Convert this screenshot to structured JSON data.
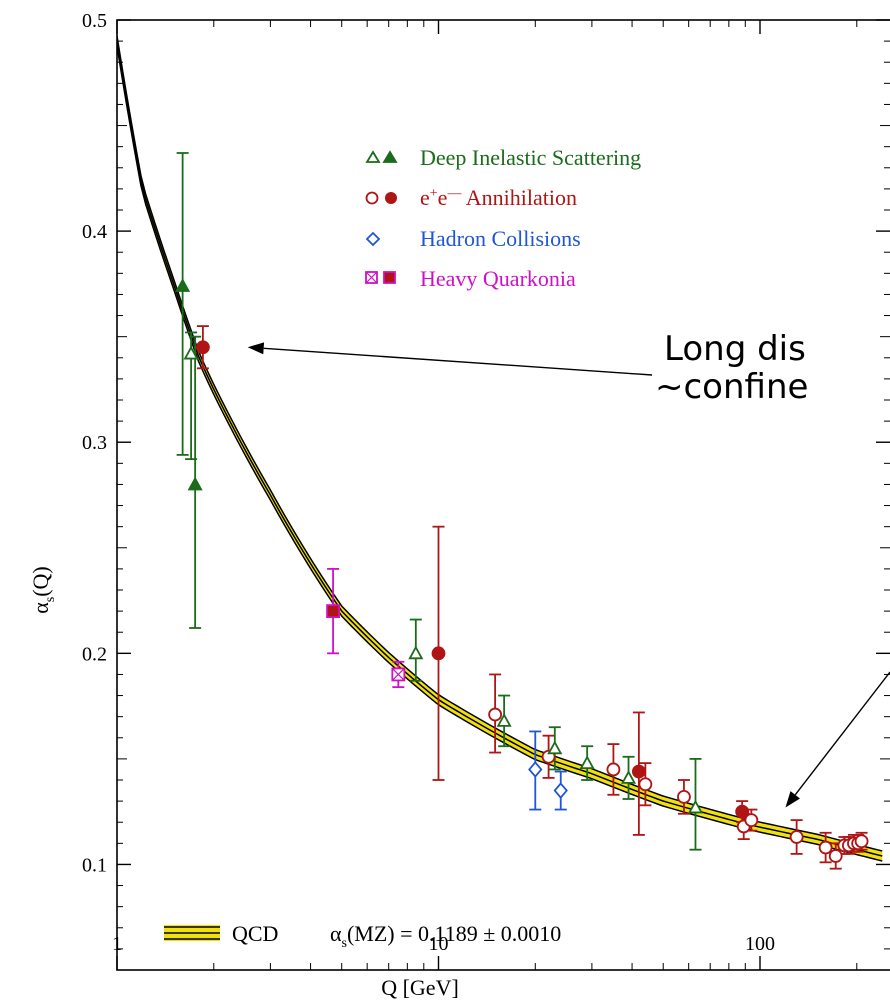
{
  "chart_data": {
    "type": "scatter",
    "x_scale": "log",
    "xlim": [
      1,
      240
    ],
    "ylim": [
      0.05,
      0.5
    ],
    "x_ticks": [
      {
        "value": 1,
        "label": "1"
      },
      {
        "value": 10,
        "label": "10"
      },
      {
        "value": 100,
        "label": "100"
      }
    ],
    "y_ticks": [
      {
        "value": 0.1,
        "label": "0.1"
      },
      {
        "value": 0.2,
        "label": "0.2"
      },
      {
        "value": 0.3,
        "label": "0.3"
      },
      {
        "value": 0.4,
        "label": "0.4"
      },
      {
        "value": 0.5,
        "label": "0.5"
      }
    ],
    "xlabel": "Q [GeV]",
    "ylabel": "α_s(Q)",
    "legend": [
      {
        "key": "dis",
        "label": "Deep Inelastic Scattering",
        "color": "#1a6b1a"
      },
      {
        "key": "ee",
        "label": "e+e— Annihilation",
        "color": "#b01515"
      },
      {
        "key": "hadron",
        "label": "Hadron Collisions",
        "color": "#1f55d8"
      },
      {
        "key": "quarkonia",
        "label": "Heavy Quarkonia",
        "color": "#d010c8"
      }
    ],
    "qcd_band": {
      "label": "QCD",
      "formula": "α_s(MZ) = 0.1189 ± 0.0010",
      "color": "#f0e010",
      "curve": [
        {
          "x": 1.0,
          "y": 0.49
        },
        {
          "x": 1.2,
          "y": 0.42
        },
        {
          "x": 1.5,
          "y": 0.375
        },
        {
          "x": 1.8,
          "y": 0.34
        },
        {
          "x": 2.0,
          "y": 0.325
        },
        {
          "x": 3.0,
          "y": 0.275
        },
        {
          "x": 5.0,
          "y": 0.22
        },
        {
          "x": 7.0,
          "y": 0.198
        },
        {
          "x": 10.0,
          "y": 0.178
        },
        {
          "x": 20.0,
          "y": 0.152
        },
        {
          "x": 30.0,
          "y": 0.143
        },
        {
          "x": 50.0,
          "y": 0.13
        },
        {
          "x": 91.2,
          "y": 0.119
        },
        {
          "x": 150.0,
          "y": 0.112
        },
        {
          "x": 240.0,
          "y": 0.104
        }
      ]
    },
    "points": [
      {
        "series": "dis",
        "filled": true,
        "shape": "triangle",
        "x": 1.6,
        "y": 0.374,
        "err_lo": 0.08,
        "err_hi": 0.063
      },
      {
        "series": "dis",
        "filled": false,
        "shape": "triangle",
        "x": 1.7,
        "y": 0.342,
        "err_lo": 0.05,
        "err_hi": 0.01
      },
      {
        "series": "dis",
        "filled": true,
        "shape": "triangle",
        "x": 1.75,
        "y": 0.28,
        "err_lo": 0.068,
        "err_hi": 0.07
      },
      {
        "series": "ee",
        "filled": true,
        "shape": "circle",
        "x": 1.85,
        "y": 0.345,
        "err_lo": 0.01,
        "err_hi": 0.01
      },
      {
        "series": "quarkonia",
        "filled": true,
        "shape": "square",
        "x": 4.7,
        "y": 0.22,
        "err_lo": 0.02,
        "err_hi": 0.02
      },
      {
        "series": "quarkonia",
        "filled": false,
        "shape": "square",
        "x": 7.5,
        "y": 0.19,
        "err_lo": 0.006,
        "err_hi": 0.006
      },
      {
        "series": "dis",
        "filled": false,
        "shape": "triangle",
        "x": 8.5,
        "y": 0.2,
        "err_lo": 0.013,
        "err_hi": 0.016
      },
      {
        "series": "ee",
        "filled": true,
        "shape": "circle",
        "x": 10.0,
        "y": 0.2,
        "err_lo": 0.06,
        "err_hi": 0.06
      },
      {
        "series": "ee",
        "filled": false,
        "shape": "circle",
        "x": 15.0,
        "y": 0.171,
        "err_lo": 0.018,
        "err_hi": 0.019
      },
      {
        "series": "dis",
        "filled": false,
        "shape": "triangle",
        "x": 16.0,
        "y": 0.168,
        "err_lo": 0.012,
        "err_hi": 0.012
      },
      {
        "series": "hadron",
        "filled": false,
        "shape": "diamond",
        "x": 20.0,
        "y": 0.145,
        "err_lo": 0.019,
        "err_hi": 0.018
      },
      {
        "series": "ee",
        "filled": false,
        "shape": "circle",
        "x": 22.0,
        "y": 0.151,
        "err_lo": 0.01,
        "err_hi": 0.01
      },
      {
        "series": "dis",
        "filled": false,
        "shape": "triangle",
        "x": 23.0,
        "y": 0.155,
        "err_lo": 0.01,
        "err_hi": 0.01
      },
      {
        "series": "hadron",
        "filled": false,
        "shape": "diamond",
        "x": 24.0,
        "y": 0.135,
        "err_lo": 0.009,
        "err_hi": 0.009
      },
      {
        "series": "dis",
        "filled": false,
        "shape": "triangle",
        "x": 29.0,
        "y": 0.148,
        "err_lo": 0.008,
        "err_hi": 0.008
      },
      {
        "series": "ee",
        "filled": false,
        "shape": "circle",
        "x": 35.0,
        "y": 0.145,
        "err_lo": 0.012,
        "err_hi": 0.012
      },
      {
        "series": "dis",
        "filled": false,
        "shape": "triangle",
        "x": 39.0,
        "y": 0.141,
        "err_lo": 0.01,
        "err_hi": 0.01
      },
      {
        "series": "ee",
        "filled": true,
        "shape": "circle",
        "x": 42.0,
        "y": 0.144,
        "err_lo": 0.03,
        "err_hi": 0.028
      },
      {
        "series": "ee",
        "filled": false,
        "shape": "circle",
        "x": 44.0,
        "y": 0.138,
        "err_lo": 0.01,
        "err_hi": 0.01
      },
      {
        "series": "ee",
        "filled": false,
        "shape": "circle",
        "x": 58.0,
        "y": 0.132,
        "err_lo": 0.008,
        "err_hi": 0.008
      },
      {
        "series": "dis",
        "filled": false,
        "shape": "triangle",
        "x": 63.0,
        "y": 0.127,
        "err_lo": 0.02,
        "err_hi": 0.023
      },
      {
        "series": "ee",
        "filled": true,
        "shape": "circle",
        "x": 88.0,
        "y": 0.125,
        "err_lo": 0.005,
        "err_hi": 0.005
      },
      {
        "series": "ee",
        "filled": false,
        "shape": "circle",
        "x": 89.0,
        "y": 0.118,
        "err_lo": 0.006,
        "err_hi": 0.006
      },
      {
        "series": "ee",
        "filled": false,
        "shape": "circle",
        "x": 94.0,
        "y": 0.121,
        "err_lo": 0.005,
        "err_hi": 0.005
      },
      {
        "series": "ee",
        "filled": false,
        "shape": "circle",
        "x": 130.0,
        "y": 0.113,
        "err_lo": 0.008,
        "err_hi": 0.008
      },
      {
        "series": "ee",
        "filled": false,
        "shape": "circle",
        "x": 160.0,
        "y": 0.108,
        "err_lo": 0.007,
        "err_hi": 0.007
      },
      {
        "series": "ee",
        "filled": false,
        "shape": "circle",
        "x": 172.0,
        "y": 0.104,
        "err_lo": 0.006,
        "err_hi": 0.006
      },
      {
        "series": "ee",
        "filled": false,
        "shape": "circle",
        "x": 183.0,
        "y": 0.109,
        "err_lo": 0.004,
        "err_hi": 0.004
      },
      {
        "series": "ee",
        "filled": false,
        "shape": "circle",
        "x": 189.0,
        "y": 0.109,
        "err_lo": 0.004,
        "err_hi": 0.004
      },
      {
        "series": "ee",
        "filled": false,
        "shape": "circle",
        "x": 196.0,
        "y": 0.11,
        "err_lo": 0.004,
        "err_hi": 0.004
      },
      {
        "series": "ee",
        "filled": false,
        "shape": "circle",
        "x": 202.0,
        "y": 0.11,
        "err_lo": 0.004,
        "err_hi": 0.004
      },
      {
        "series": "ee",
        "filled": false,
        "shape": "circle",
        "x": 207.0,
        "y": 0.111,
        "err_lo": 0.004,
        "err_hi": 0.004
      }
    ],
    "annotations": [
      {
        "key": "long_distance",
        "text_lines": [
          "Long dis",
          "~confine"
        ],
        "arrow_target": {
          "x": 2.55,
          "y": 0.345
        }
      },
      {
        "key": "short_distance",
        "text_lines": [],
        "arrow_target": {
          "x": 120.0,
          "y": 0.127
        }
      }
    ]
  }
}
